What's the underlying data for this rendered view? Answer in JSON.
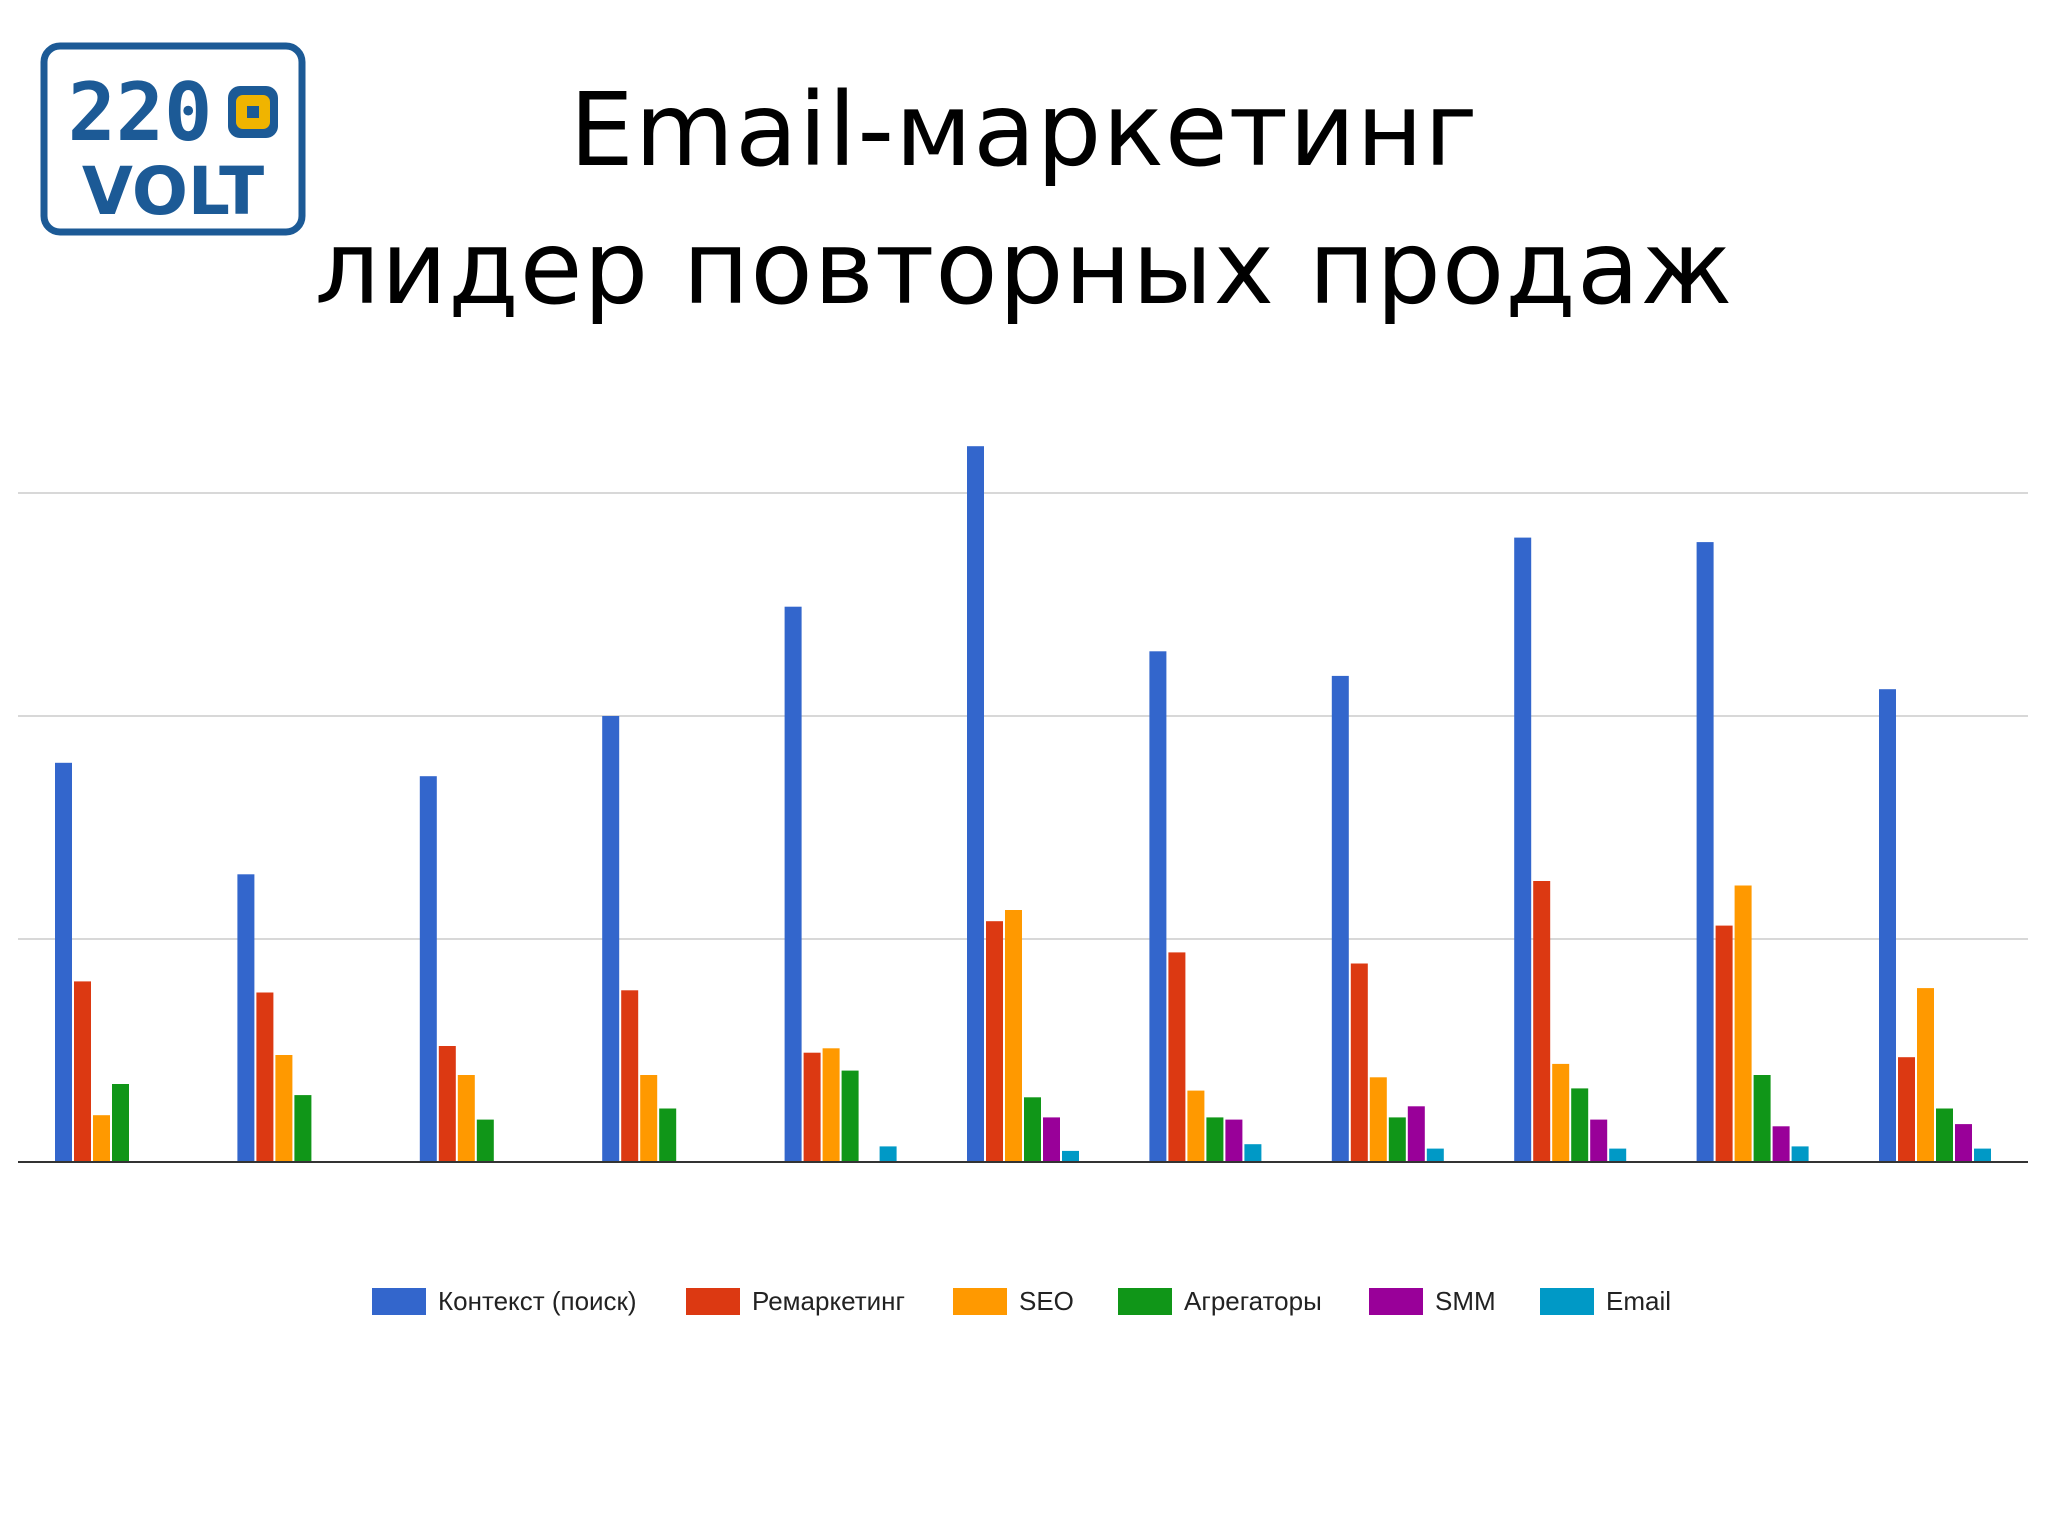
{
  "logo": {
    "line1": "220",
    "line2": "VOLT",
    "border_color": "#1c5a96",
    "text_color": "#1c5a96",
    "accent_color": "#f0b400"
  },
  "title": {
    "line1": "Email-маркетинг",
    "line2": "лидер повторных продаж"
  },
  "chart_data": {
    "type": "bar",
    "title": "",
    "xlabel": "",
    "ylabel": "",
    "grid": true,
    "legend_placement": "bottom",
    "ylim": [
      0,
      3
    ],
    "gridlines": [
      1,
      2,
      3
    ],
    "categories": [
      "",
      "",
      "",
      "",
      "",
      "",
      "",
      "",
      "",
      "",
      ""
    ],
    "series": [
      {
        "name": "Контекст (поиск)",
        "color": "#3366cc",
        "values": [
          1.79,
          1.29,
          1.73,
          2.0,
          2.49,
          3.21,
          2.29,
          2.18,
          2.8,
          2.78,
          2.12
        ]
      },
      {
        "name": "Ремаркетинг",
        "color": "#dc3912",
        "values": [
          0.81,
          0.76,
          0.52,
          0.77,
          0.49,
          1.08,
          0.94,
          0.89,
          1.26,
          1.06,
          0.47
        ]
      },
      {
        "name": "SEO",
        "color": "#ff9900",
        "values": [
          0.21,
          0.48,
          0.39,
          0.39,
          0.51,
          1.13,
          0.32,
          0.38,
          0.44,
          1.24,
          0.78
        ]
      },
      {
        "name": "Агрегаторы",
        "color": "#109618",
        "values": [
          0.35,
          0.3,
          0.19,
          0.24,
          0.41,
          0.29,
          0.2,
          0.2,
          0.33,
          0.39,
          0.24
        ]
      },
      {
        "name": "SMM",
        "color": "#990099",
        "values": [
          0,
          0,
          0,
          0,
          0,
          0.2,
          0.19,
          0.25,
          0.19,
          0.16,
          0.17
        ]
      },
      {
        "name": "Email",
        "color": "#0099c6",
        "values": [
          0,
          0,
          0,
          0,
          0.07,
          0.05,
          0.08,
          0.06,
          0.06,
          0.07,
          0.06
        ]
      }
    ]
  }
}
